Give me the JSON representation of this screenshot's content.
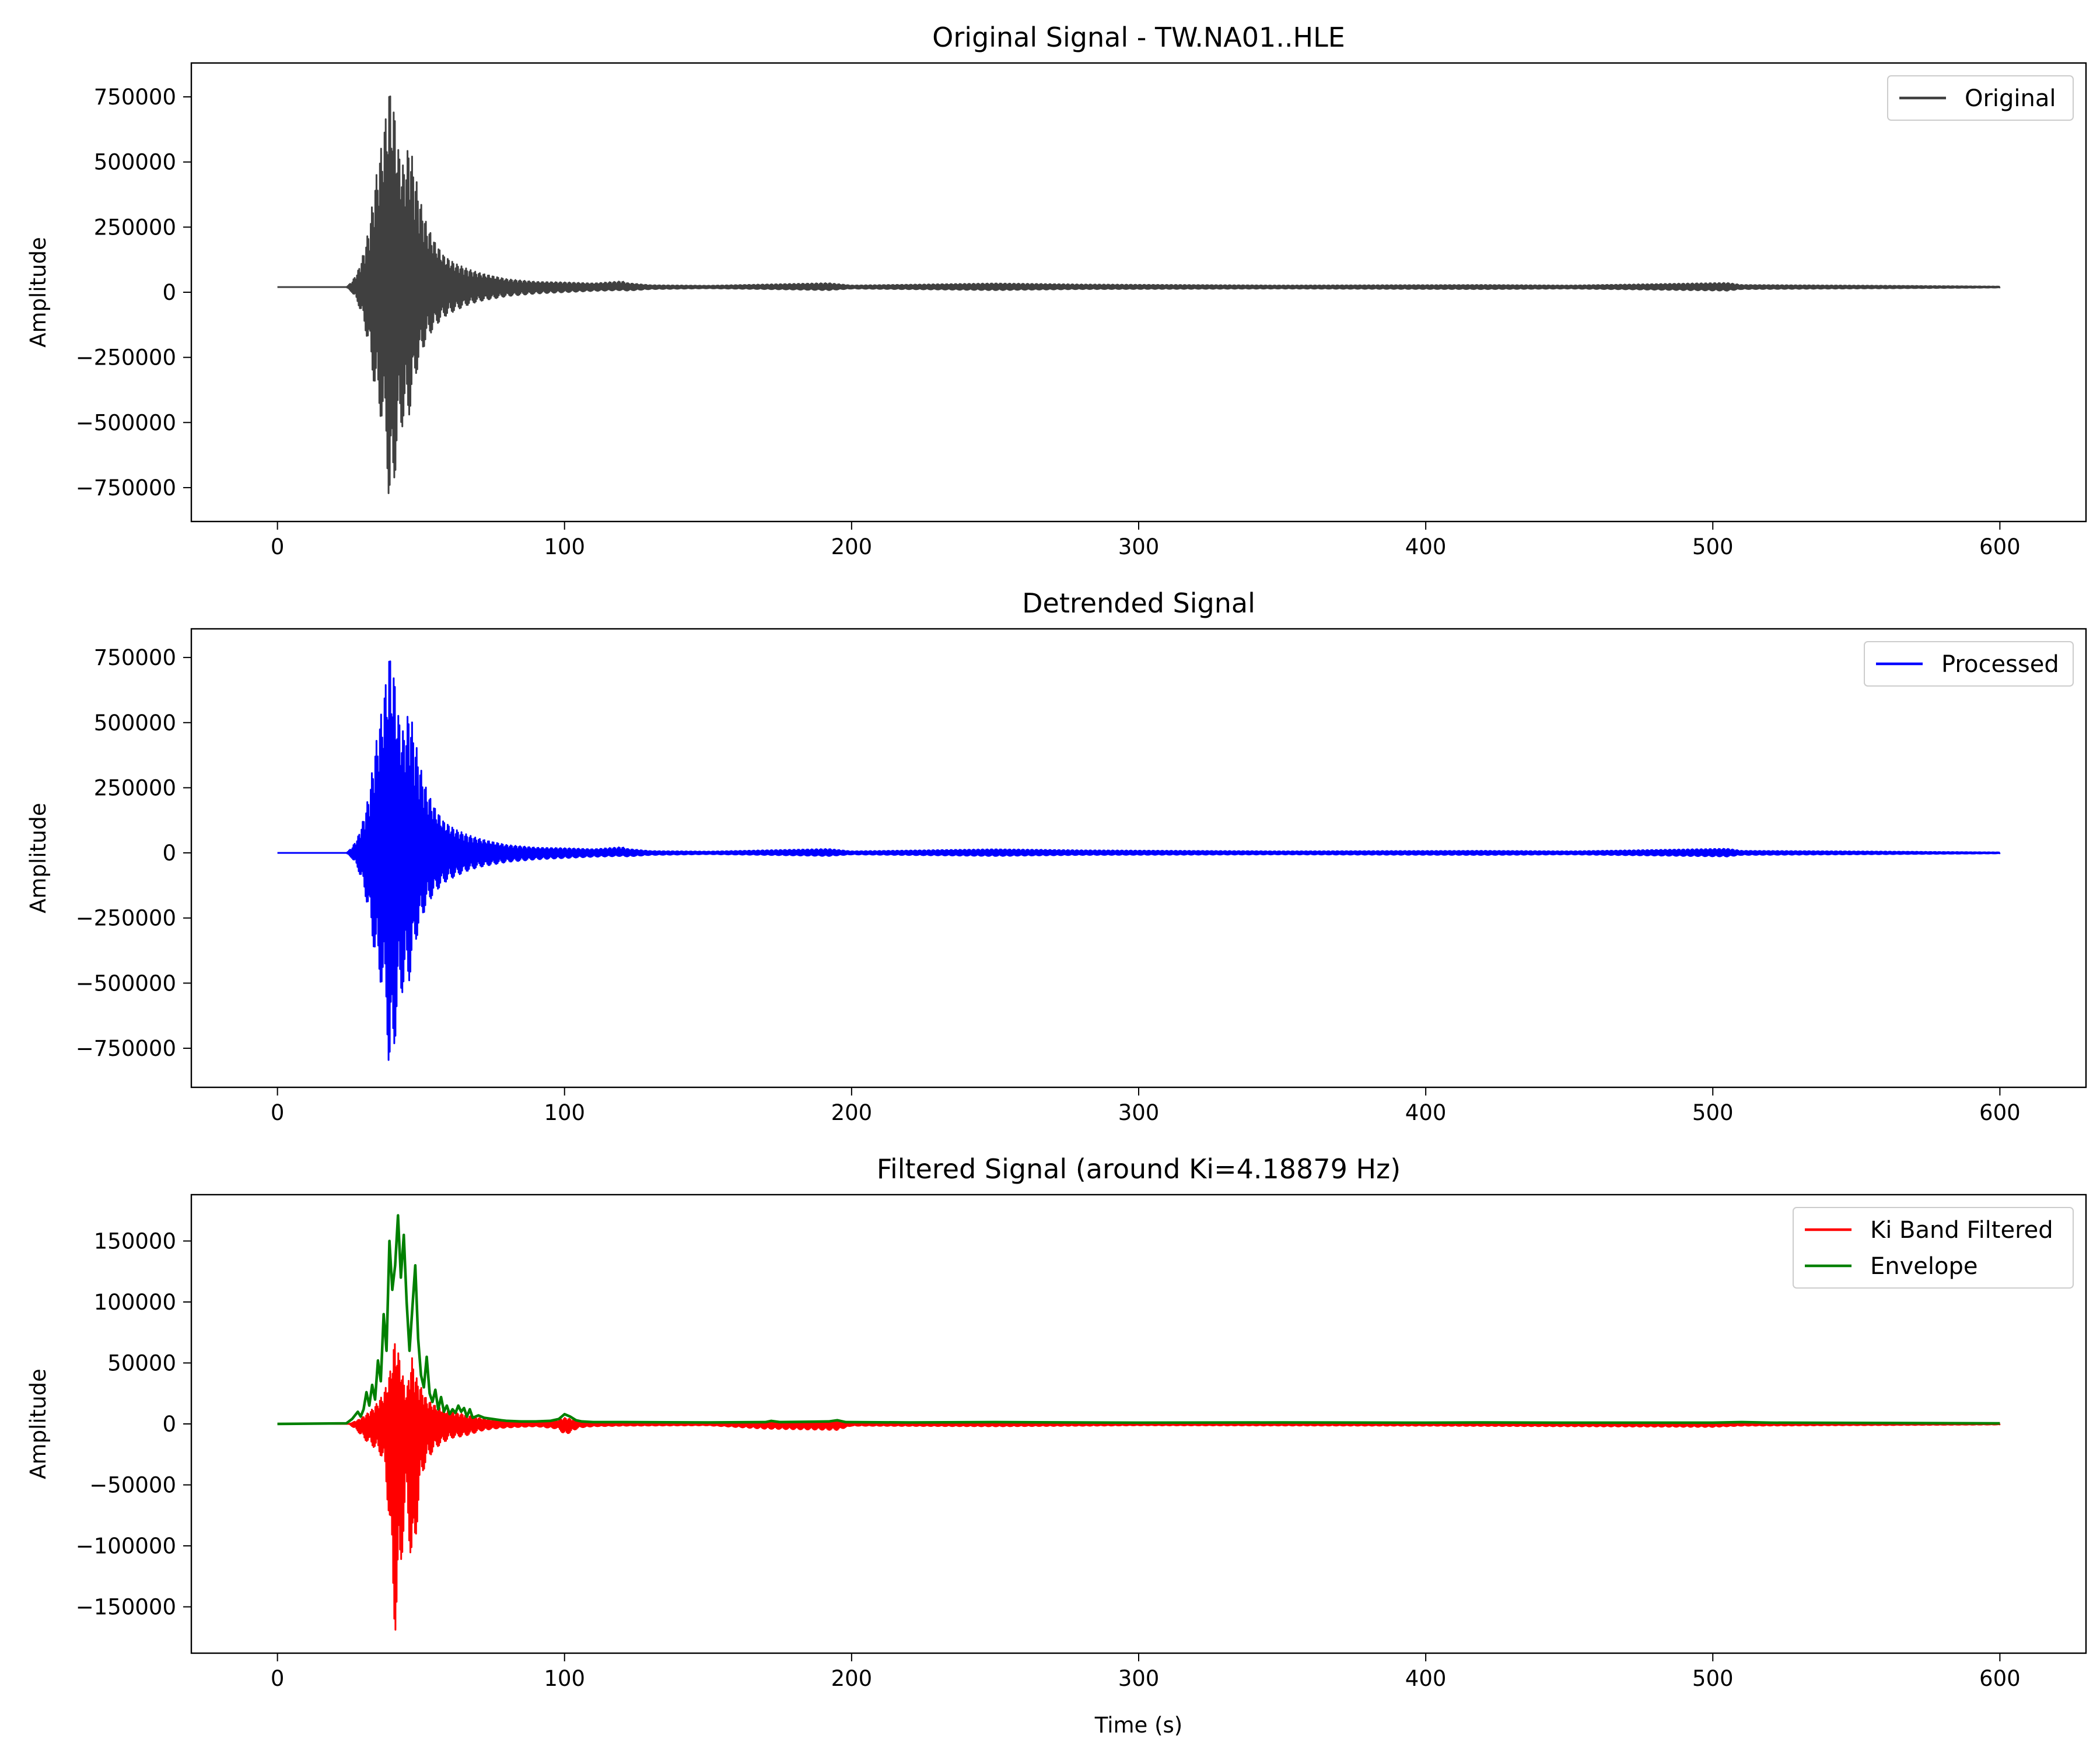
{
  "chart_data": [
    {
      "type": "line",
      "title": "Original Signal - TW.NA01..HLE",
      "xlabel": "",
      "ylabel": "Amplitude",
      "xlim": [
        -30,
        630
      ],
      "ylim": [
        -880000,
        880000
      ],
      "xticks": [
        0,
        100,
        200,
        300,
        400,
        500,
        600
      ],
      "yticks": [
        -750000,
        -500000,
        -250000,
        0,
        250000,
        500000,
        750000
      ],
      "ytick_labels": [
        "−750000",
        "−500000",
        "−250000",
        "0",
        "250000",
        "500000",
        "750000"
      ],
      "legend": "top-right",
      "series": [
        {
          "name": "Original",
          "color": "#404040",
          "style": "oscillation-envelope",
          "baseline": 20000,
          "t": [
            0,
            24,
            26,
            28,
            30,
            32,
            34,
            36,
            38,
            39,
            40,
            41,
            42,
            44,
            46,
            48,
            50,
            52,
            55,
            58,
            62,
            66,
            70,
            75,
            80,
            90,
            100,
            110,
            120,
            122,
            130,
            150,
            170,
            192,
            200,
            250,
            280,
            350,
            420,
            450,
            505,
            510,
            560,
            600
          ],
          "upper": [
            20000,
            20000,
            40000,
            80000,
            150000,
            250000,
            420000,
            550000,
            700000,
            790000,
            740000,
            680000,
            560000,
            480000,
            580000,
            450000,
            340000,
            260000,
            190000,
            140000,
            110000,
            90000,
            75000,
            62000,
            50000,
            40000,
            38000,
            34000,
            42000,
            35000,
            27000,
            25000,
            30000,
            35000,
            26000,
            34000,
            30000,
            26000,
            28000,
            26000,
            36000,
            28000,
            25000,
            22000
          ],
          "lower": [
            20000,
            20000,
            0,
            -40000,
            -110000,
            -220000,
            -380000,
            -480000,
            -600000,
            -870000,
            -800000,
            -700000,
            -560000,
            -500000,
            -470000,
            -330000,
            -240000,
            -180000,
            -130000,
            -95000,
            -70000,
            -50000,
            -35000,
            -25000,
            -15000,
            -5000,
            0,
            5000,
            8000,
            6000,
            12000,
            15000,
            12000,
            8000,
            14000,
            8000,
            12000,
            14000,
            12000,
            14000,
            6000,
            12000,
            15000,
            18000
          ]
        }
      ]
    },
    {
      "type": "line",
      "title": "Detrended Signal",
      "xlabel": "",
      "ylabel": "Amplitude",
      "xlim": [
        -30,
        630
      ],
      "ylim": [
        -900000,
        860000
      ],
      "xticks": [
        0,
        100,
        200,
        300,
        400,
        500,
        600
      ],
      "yticks": [
        -750000,
        -500000,
        -250000,
        0,
        250000,
        500000,
        750000
      ],
      "ytick_labels": [
        "−750000",
        "−500000",
        "−250000",
        "0",
        "250000",
        "500000",
        "750000"
      ],
      "legend": "top-right",
      "series": [
        {
          "name": "Processed",
          "color": "#0000ff",
          "style": "oscillation-envelope",
          "baseline": 0,
          "t": [
            0,
            24,
            26,
            28,
            30,
            32,
            34,
            36,
            38,
            39,
            40,
            41,
            42,
            44,
            46,
            48,
            50,
            52,
            55,
            58,
            62,
            66,
            70,
            75,
            80,
            90,
            100,
            110,
            120,
            122,
            130,
            150,
            170,
            192,
            200,
            250,
            280,
            350,
            420,
            450,
            505,
            510,
            560,
            600
          ],
          "upper": [
            0,
            0,
            20000,
            60000,
            130000,
            230000,
            400000,
            530000,
            680000,
            775000,
            720000,
            660000,
            540000,
            460000,
            560000,
            430000,
            320000,
            240000,
            170000,
            120000,
            90000,
            70000,
            55000,
            42000,
            30000,
            20000,
            18000,
            14000,
            22000,
            15000,
            7000,
            5000,
            10000,
            15000,
            6000,
            14000,
            10000,
            6000,
            8000,
            6000,
            16000,
            8000,
            5000,
            2000
          ],
          "lower": [
            0,
            0,
            -20000,
            -60000,
            -130000,
            -240000,
            -400000,
            -500000,
            -620000,
            -895000,
            -820000,
            -720000,
            -580000,
            -520000,
            -490000,
            -350000,
            -260000,
            -200000,
            -150000,
            -115000,
            -90000,
            -70000,
            -55000,
            -45000,
            -35000,
            -25000,
            -20000,
            -15000,
            -12000,
            -14000,
            -8000,
            -5000,
            -8000,
            -12000,
            -6000,
            -12000,
            -8000,
            -6000,
            -8000,
            -6000,
            -14000,
            -8000,
            -5000,
            -2000
          ]
        }
      ]
    },
    {
      "type": "line",
      "title": "Filtered Signal (around Ki=4.18879 Hz)",
      "xlabel": "Time (s)",
      "ylabel": "Amplitude",
      "xlim": [
        -30,
        630
      ],
      "ylim": [
        -188000,
        188000
      ],
      "xticks": [
        0,
        100,
        200,
        300,
        400,
        500,
        600
      ],
      "yticks": [
        -150000,
        -100000,
        -50000,
        0,
        50000,
        100000,
        150000
      ],
      "ytick_labels": [
        "−150000",
        "−100000",
        "−50000",
        "0",
        "50000",
        "100000",
        "150000"
      ],
      "legend": "top-right",
      "series": [
        {
          "name": "Ki Band Filtered",
          "color": "#ff0000",
          "style": "oscillation-envelope",
          "baseline": 0,
          "t": [
            0,
            25,
            28,
            30,
            33,
            35,
            37,
            39,
            40,
            41,
            42,
            43,
            44,
            45,
            46,
            47,
            48,
            50,
            52,
            55,
            58,
            60,
            62,
            65,
            68,
            70,
            75,
            80,
            90,
            98,
            100,
            102,
            105,
            110,
            120,
            150,
            170,
            195,
            200,
            250,
            300,
            400,
            500,
            510,
            560,
            600
          ],
          "upper": [
            0,
            0,
            3000,
            6000,
            12000,
            18000,
            25000,
            40000,
            55000,
            70000,
            60000,
            50000,
            35000,
            25000,
            45000,
            55000,
            40000,
            30000,
            20000,
            15000,
            12000,
            10000,
            9000,
            8000,
            6000,
            5000,
            3000,
            2000,
            1500,
            3000,
            5000,
            4000,
            2000,
            1500,
            1200,
            1000,
            1800,
            2000,
            1000,
            1200,
            900,
            1000,
            1200,
            1000,
            800,
            400
          ],
          "lower": [
            0,
            0,
            -6000,
            -12000,
            -18000,
            -22000,
            -30000,
            -80000,
            -145000,
            -172000,
            -150000,
            -120000,
            -90000,
            -60000,
            -100000,
            -128000,
            -100000,
            -45000,
            -30000,
            -20000,
            -15000,
            -12000,
            -11000,
            -10000,
            -8000,
            -6000,
            -4000,
            -3000,
            -2000,
            -4000,
            -9000,
            -7000,
            -3000,
            -2000,
            -1500,
            -1200,
            -4000,
            -5000,
            -1500,
            -2000,
            -1200,
            -1500,
            -2500,
            -1500,
            -1000,
            -500
          ]
        },
        {
          "name": "Envelope",
          "color": "#008000",
          "style": "line",
          "x": [
            0,
            24,
            26,
            28,
            29,
            30,
            31,
            32,
            33,
            34,
            35,
            36,
            37,
            38,
            39,
            40,
            41,
            42,
            43,
            44,
            45,
            46,
            47,
            48,
            49,
            50,
            51,
            52,
            53,
            54,
            55,
            56,
            57,
            58,
            59,
            60,
            61,
            62,
            63,
            64,
            65,
            66,
            67,
            68,
            70,
            72,
            75,
            78,
            80,
            85,
            90,
            95,
            98,
            100,
            102,
            104,
            106,
            110,
            120,
            150,
            170,
            172,
            175,
            192,
            195,
            198,
            220,
            250,
            300,
            350,
            400,
            420,
            450,
            500,
            510,
            520,
            600
          ],
          "y": [
            0,
            500,
            4000,
            10000,
            6000,
            12000,
            26000,
            15000,
            32000,
            20000,
            52000,
            35000,
            90000,
            60000,
            150000,
            110000,
            130000,
            171000,
            120000,
            155000,
            100000,
            60000,
            95000,
            130000,
            70000,
            40000,
            30000,
            55000,
            25000,
            18000,
            28000,
            12000,
            22000,
            10000,
            15000,
            8000,
            12000,
            9000,
            15000,
            10000,
            13000,
            6000,
            12000,
            5000,
            7000,
            5000,
            4000,
            3000,
            2500,
            2000,
            2000,
            2500,
            4000,
            8000,
            6000,
            3000,
            2000,
            1500,
            1500,
            1200,
            1500,
            2500,
            1500,
            2000,
            3000,
            1500,
            1200,
            1500,
            1000,
            1200,
            1000,
            1200,
            1000,
            1000,
            1500,
            1000,
            500
          ]
        }
      ]
    }
  ]
}
